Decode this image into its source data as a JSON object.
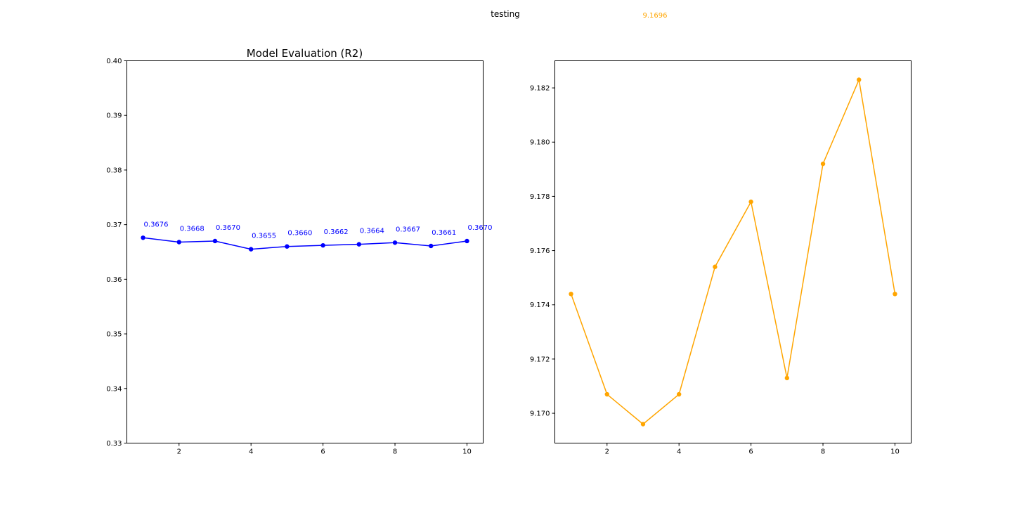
{
  "figure": {
    "title": "testing",
    "orphan_label": "9.1696",
    "orphan_label_color": "#ffa500"
  },
  "chart_data": [
    {
      "type": "line",
      "title": "Model Evaluation (R2)",
      "xlabel": "",
      "ylabel": "",
      "x": [
        1,
        2,
        3,
        4,
        5,
        6,
        7,
        8,
        9,
        10
      ],
      "xticks": [
        2,
        4,
        6,
        8,
        10
      ],
      "xlim": [
        0.55,
        10.45
      ],
      "ylim": [
        0.33,
        0.4
      ],
      "yticks": [
        0.33,
        0.34,
        0.35,
        0.36,
        0.37,
        0.38,
        0.39,
        0.4
      ],
      "ytick_labels": [
        "0.33",
        "0.34",
        "0.35",
        "0.36",
        "0.37",
        "0.38",
        "0.39",
        "0.40"
      ],
      "grid": false,
      "series": [
        {
          "color": "#0000ff",
          "values": [
            0.3676,
            0.3668,
            0.367,
            0.3655,
            0.366,
            0.3662,
            0.3664,
            0.3667,
            0.3661,
            0.367
          ],
          "data_labels": [
            "0.3676",
            "0.3668",
            "0.3670",
            "0.3655",
            "0.3660",
            "0.3662",
            "0.3664",
            "0.3667",
            "0.3661",
            "0.3670"
          ]
        }
      ]
    },
    {
      "type": "line",
      "title": "",
      "xlabel": "",
      "ylabel": "",
      "x": [
        1,
        2,
        3,
        4,
        5,
        6,
        7,
        8,
        9,
        10
      ],
      "xticks": [
        2,
        4,
        6,
        8,
        10
      ],
      "xlim": [
        0.55,
        10.45
      ],
      "ylim": [
        9.1689,
        9.183
      ],
      "yticks": [
        9.17,
        9.172,
        9.174,
        9.176,
        9.178,
        9.18,
        9.182
      ],
      "ytick_labels": [
        "9.170",
        "9.172",
        "9.174",
        "9.176",
        "9.178",
        "9.180",
        "9.182"
      ],
      "grid": false,
      "series": [
        {
          "color": "#ffa500",
          "values": [
            9.1744,
            9.1707,
            9.1696,
            9.1707,
            9.1754,
            9.1778,
            9.1713,
            9.1792,
            9.1823,
            9.1744
          ]
        }
      ]
    }
  ]
}
